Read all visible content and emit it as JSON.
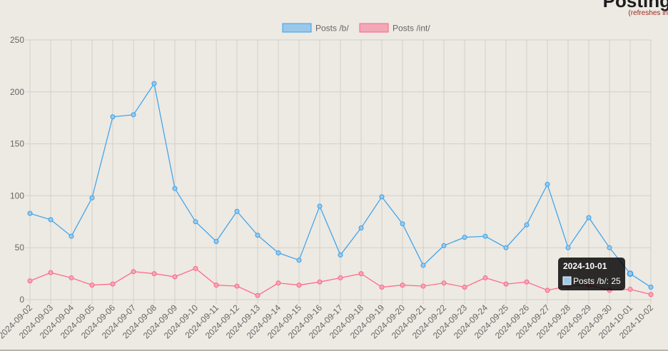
{
  "header": {
    "title": "Posting",
    "subtitle": "(refreshes in"
  },
  "colors": {
    "b_line": "#36a2eb",
    "b_fill": "#9ac8ea",
    "int_line": "#ff6384",
    "int_fill": "#f2a8b6",
    "grid": "#d3cfc9",
    "axis_text": "#666666",
    "tooltip_bg": "#000000"
  },
  "chart_data": {
    "type": "line",
    "title": "",
    "xlabel": "",
    "ylabel": "",
    "ylim": [
      0,
      250
    ],
    "yticks": [
      0,
      50,
      100,
      150,
      200,
      250
    ],
    "grid": true,
    "legend_position": "top-center",
    "categories": [
      "2024-09-02",
      "2024-09-03",
      "2024-09-04",
      "2024-09-05",
      "2024-09-06",
      "2024-09-07",
      "2024-09-08",
      "2024-09-09",
      "2024-09-10",
      "2024-09-11",
      "2024-09-12",
      "2024-09-13",
      "2024-09-14",
      "2024-09-15",
      "2024-09-16",
      "2024-09-17",
      "2024-09-18",
      "2024-09-19",
      "2024-09-20",
      "2024-09-21",
      "2024-09-22",
      "2024-09-23",
      "2024-09-24",
      "2024-09-25",
      "2024-09-26",
      "2024-09-27",
      "2024-09-28",
      "2024-09-29",
      "2024-09-30",
      "2024-10-01",
      "2024-10-02"
    ],
    "series": [
      {
        "name": "Posts /b/",
        "color": "#36a2eb",
        "values": [
          83,
          77,
          61,
          98,
          176,
          178,
          208,
          107,
          75,
          56,
          85,
          62,
          45,
          38,
          90,
          43,
          69,
          99,
          73,
          33,
          52,
          60,
          61,
          50,
          72,
          111,
          50,
          79,
          50,
          25,
          12
        ]
      },
      {
        "name": "Posts /int/",
        "color": "#ff6384",
        "values": [
          18,
          26,
          21,
          14,
          15,
          27,
          25,
          22,
          30,
          14,
          13,
          4,
          16,
          14,
          17,
          21,
          25,
          12,
          14,
          13,
          16,
          12,
          21,
          15,
          17,
          9,
          13,
          14,
          9,
          10,
          5
        ]
      }
    ],
    "tooltip": {
      "title": "2024-10-01",
      "label": "Posts /b/: 25",
      "series_index": 0,
      "point_index": 29
    }
  }
}
